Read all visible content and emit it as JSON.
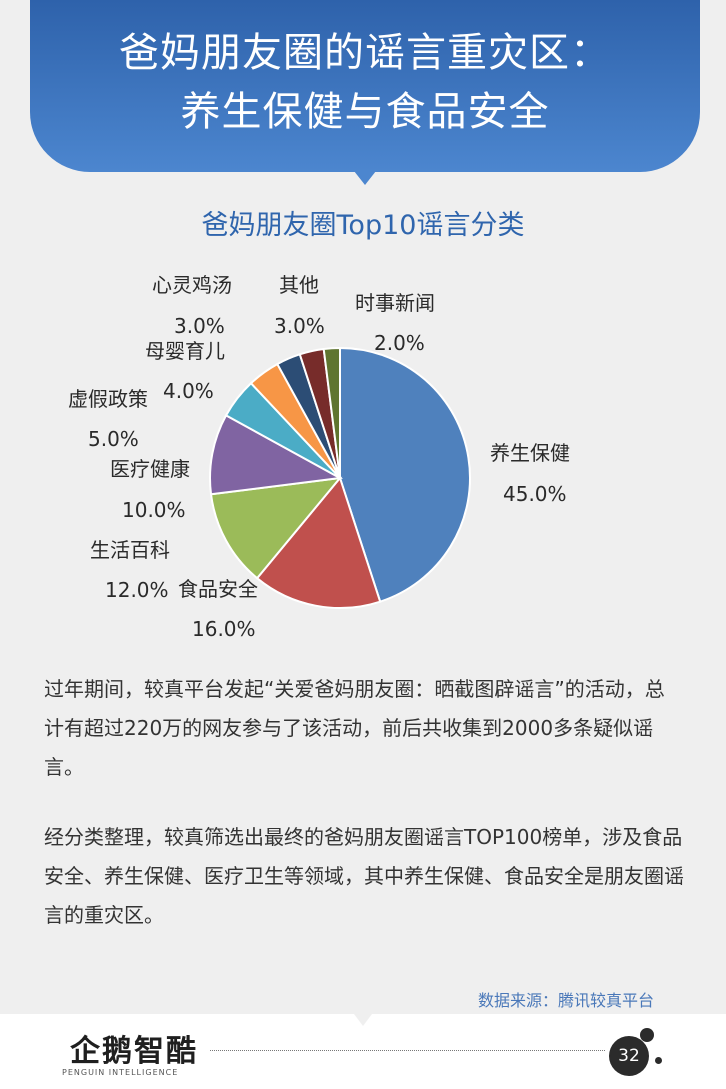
{
  "header": {
    "title_line1": "爸妈朋友圈的谣言重灾区：",
    "title_line2": "养生保健与食品安全",
    "color": "#3a70bb"
  },
  "chart_data": {
    "type": "pie",
    "title": "爸妈朋友圈Top10谣言分类",
    "slices": [
      {
        "label": "养生保健",
        "value": 45.0,
        "display": "45.0%",
        "color": "#4f81bd"
      },
      {
        "label": "食品安全",
        "value": 16.0,
        "display": "16.0%",
        "color": "#c0504d"
      },
      {
        "label": "生活百科",
        "value": 12.0,
        "display": "12.0%",
        "color": "#9bbb59"
      },
      {
        "label": "医疗健康",
        "value": 10.0,
        "display": "10.0%",
        "color": "#8064a2"
      },
      {
        "label": "虚假政策",
        "value": 5.0,
        "display": "5.0%",
        "color": "#4bacc6"
      },
      {
        "label": "母婴育儿",
        "value": 4.0,
        "display": "4.0%",
        "color": "#f79646"
      },
      {
        "label": "心灵鸡汤",
        "value": 3.0,
        "display": "3.0%",
        "color": "#2c4d75"
      },
      {
        "label": "其他",
        "value": 3.0,
        "display": "3.0%",
        "color": "#772c2a"
      },
      {
        "label": "时事新闻",
        "value": 2.0,
        "display": "2.0%",
        "color": "#5f7530"
      }
    ],
    "start_angle_deg": 0,
    "direction": "clockwise",
    "legend": "none"
  },
  "body": {
    "paragraph1": "过年期间，较真平台发起“关爱爸妈朋友圈：晒截图辟谣言”的活动，总计有超过220万的网友参与了该活动，前后共收集到2000多条疑似谣言。",
    "paragraph2": "经分类整理，较真筛选出最终的爸妈朋友圈谣言TOP100榜单，涉及食品安全、养生保健、医疗卫生等领域，其中养生保健、食品安全是朋友圈谣言的重灾区。"
  },
  "source": "数据来源：腾讯较真平台",
  "footer": {
    "logo_cn": "企鹅智酷",
    "logo_en": "PENGUIN INTELLIGENCE",
    "page_number": "32"
  }
}
